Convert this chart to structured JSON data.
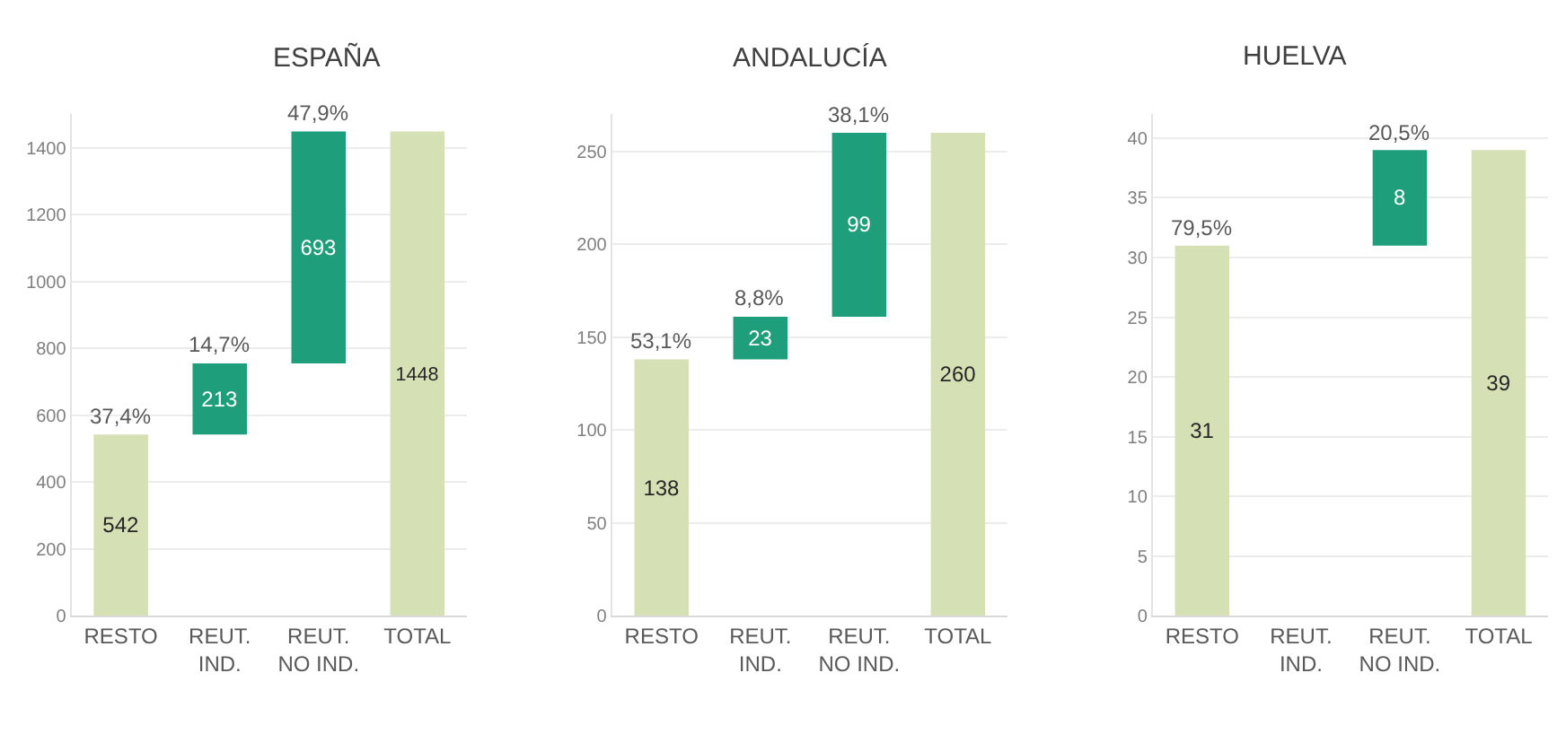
{
  "chart_data": [
    {
      "type": "bar",
      "title": "ESPAÑA",
      "categories": [
        "RESTO",
        "REUT.\nIND.",
        "REUT.\nNO IND.",
        "TOTAL"
      ],
      "values": [
        542,
        213,
        693,
        1448
      ],
      "base": [
        0,
        542,
        755,
        0
      ],
      "colors": [
        "#d5e0b5",
        "#1f9e7c",
        "#1f9e7c",
        "#d5e0b5"
      ],
      "data_labels": true,
      "ylim": [
        0,
        1500
      ],
      "yticks": [
        0,
        200,
        400,
        600,
        800,
        1000,
        1200,
        1400
      ],
      "grid": "y",
      "annotations": [
        {
          "text": "37,4%",
          "x": "RESTO",
          "y": 542
        },
        {
          "text": "14,7%",
          "x": "REUT.\nIND.",
          "y": 755
        },
        {
          "text": "47,9%",
          "x": "REUT.\nNO IND.",
          "y": 1448
        }
      ]
    },
    {
      "type": "bar",
      "title": "ANDALUCÍA",
      "categories": [
        "RESTO",
        "REUT.\nIND.",
        "REUT.\nNO IND.",
        "TOTAL"
      ],
      "values": [
        138,
        23,
        99,
        260
      ],
      "base": [
        0,
        138,
        161,
        0
      ],
      "colors": [
        "#d5e0b5",
        "#1f9e7c",
        "#1f9e7c",
        "#d5e0b5"
      ],
      "data_labels": true,
      "ylim": [
        0,
        270
      ],
      "yticks": [
        0,
        50,
        100,
        150,
        200,
        250
      ],
      "grid": "y",
      "annotations": [
        {
          "text": "53,1%",
          "x": "RESTO",
          "y": 138
        },
        {
          "text": "8,8%",
          "x": "REUT.\nIND.",
          "y": 161
        },
        {
          "text": "38,1%",
          "x": "REUT.\nNO IND.",
          "y": 260
        }
      ]
    },
    {
      "type": "bar",
      "title": "HUELVA",
      "categories": [
        "RESTO",
        "REUT.\nIND.",
        "REUT.\nNO IND.",
        "TOTAL"
      ],
      "values": [
        31,
        null,
        8,
        39
      ],
      "base": [
        0,
        null,
        31,
        0
      ],
      "colors": [
        "#d5e0b5",
        "#1f9e7c",
        "#1f9e7c",
        "#d5e0b5"
      ],
      "data_labels": true,
      "ylim": [
        0,
        42
      ],
      "yticks": [
        0,
        5,
        10,
        15,
        20,
        25,
        30,
        35,
        40
      ],
      "grid": "y",
      "annotations": [
        {
          "text": "79,5%",
          "x": "RESTO",
          "y": 31
        },
        {
          "text": "20,5%",
          "x": "REUT.\nNO IND.",
          "y": 39
        }
      ]
    }
  ]
}
